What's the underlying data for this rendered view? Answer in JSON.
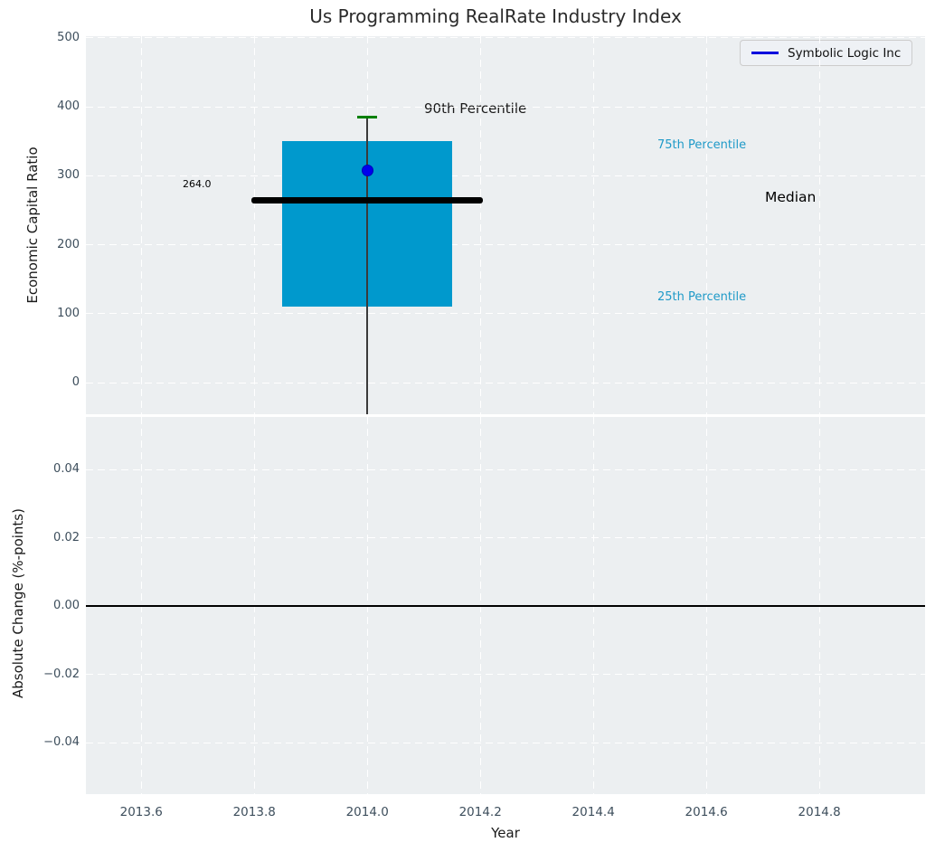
{
  "title": "Us Programming RealRate Industry Index",
  "legend": {
    "label": "Symbolic Logic Inc",
    "line_color": "#0000dd"
  },
  "annotations": {
    "p90_label": "90th Percentile",
    "p75_label": "75th Percentile",
    "median_label": "Median",
    "p25_label": "25th Percentile",
    "median_value_label": "264.0"
  },
  "colors": {
    "figure_background": "#ffffff",
    "plot_background": "#eceff1",
    "grid": "#ffffff",
    "box_fill": "#0099cd",
    "median_line": "#000000",
    "p90_cap": "#008000",
    "company_dot": "#0000ee",
    "whisker": "#3a3a3a",
    "percentile_text": "#1f9ac8",
    "tick_text": "#3d4e5c",
    "zero_line": "#000000"
  },
  "chart_data": [
    {
      "type": "box",
      "title": "Us Programming RealRate Industry Index",
      "xlabel": "Year",
      "ylabel": "Economic Capital Ratio",
      "x_tick_labels": [
        "2013.6",
        "2013.8",
        "2014.0",
        "2014.2",
        "2014.4",
        "2014.6",
        "2014.8"
      ],
      "x_tick_values": [
        2013.6,
        2013.8,
        2014.0,
        2014.2,
        2014.4,
        2014.6,
        2014.8
      ],
      "y_tick_labels": [
        "0",
        "100",
        "200",
        "300",
        "400",
        "500"
      ],
      "y_tick_values": [
        0,
        100,
        200,
        300,
        400,
        500
      ],
      "xlim": [
        2013.502,
        2014.987
      ],
      "ylim": [
        -45.9,
        502.6
      ],
      "grid": true,
      "legend_position": "upper right",
      "box": {
        "x": 2014.0,
        "box_halfwidth": 0.15,
        "median_line_halfwidth": 0.205,
        "cap_halfwidth": 0.018,
        "p25": 110,
        "median": 264.0,
        "p75": 350,
        "p90": 385,
        "whisker_low_clipped_at_axis_bottom": true
      },
      "series": [
        {
          "name": "Symbolic Logic Inc",
          "x": 2014.0,
          "value": 308,
          "marker": "dot"
        }
      ]
    },
    {
      "type": "line",
      "title": "",
      "xlabel": "Year",
      "ylabel": "Absolute Change (%-points)",
      "x_tick_labels": [
        "2013.6",
        "2013.8",
        "2014.0",
        "2014.2",
        "2014.4",
        "2014.6",
        "2014.8"
      ],
      "x_tick_values": [
        2013.6,
        2013.8,
        2014.0,
        2014.2,
        2014.4,
        2014.6,
        2014.8
      ],
      "y_tick_labels": [
        "0.04",
        "0.02",
        "0.00",
        "−0.02",
        "−0.04"
      ],
      "y_tick_values": [
        0.04,
        0.02,
        0.0,
        -0.02,
        -0.04
      ],
      "xlim": [
        2013.502,
        2014.987
      ],
      "ylim": [
        -0.0551,
        0.0554
      ],
      "grid": true,
      "zero_line": 0.0,
      "series": []
    }
  ]
}
